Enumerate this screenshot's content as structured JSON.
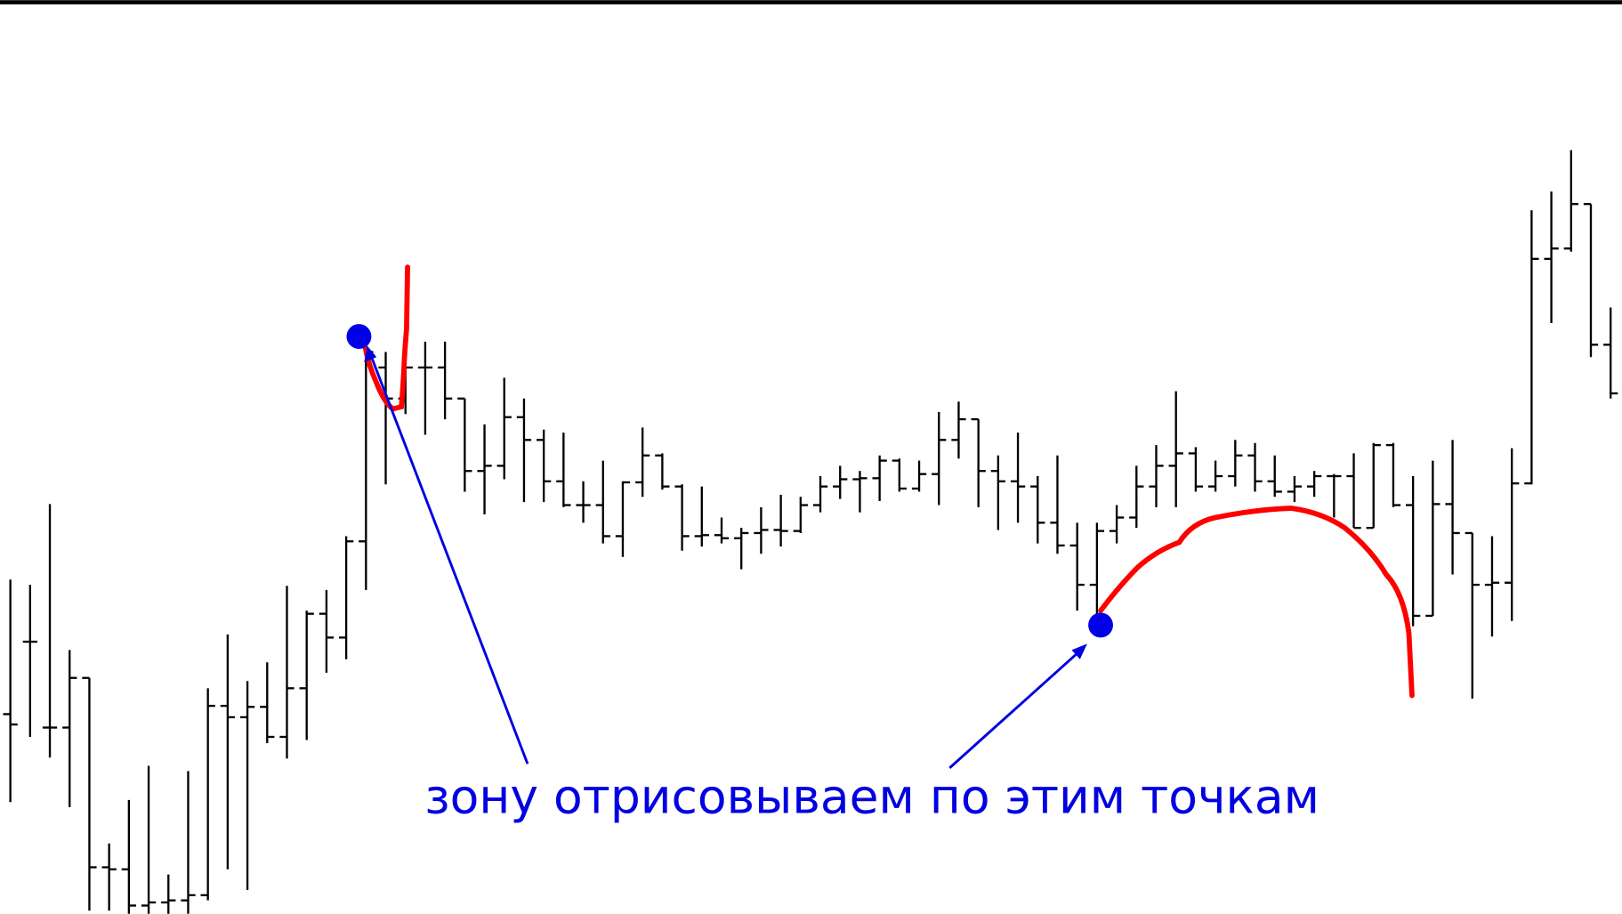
{
  "chart_data": {
    "type": "ohlc",
    "annotation": "зону отрисовываем по этим точкам",
    "ylim": [
      0,
      883
    ],
    "high": [
      323,
      318,
      396,
      255,
      228,
      68,
      110,
      143,
      38,
      138,
      218,
      270,
      225,
      243,
      317,
      293,
      313,
      365,
      558,
      543,
      543,
      553,
      553,
      498,
      473,
      518,
      498,
      468,
      465,
      418,
      438,
      418,
      470,
      445,
      415,
      413,
      383,
      373,
      393,
      405,
      403,
      423,
      433,
      428,
      443,
      440,
      438,
      485,
      495,
      478,
      443,
      465,
      423,
      443,
      378,
      378,
      395,
      433,
      453,
      505,
      451,
      438,
      458,
      455,
      443,
      423,
      428,
      425,
      445,
      455,
      455,
      423,
      438,
      458,
      368,
      365,
      450,
      680,
      698,
      738,
      686,
      586
    ],
    "low": [
      108,
      171,
      151,
      103,
      3,
      3,
      0,
      0,
      0,
      0,
      13,
      43,
      23,
      165,
      150,
      168,
      233,
      246,
      313,
      415,
      483,
      463,
      478,
      408,
      386,
      420,
      398,
      398,
      393,
      378,
      358,
      345,
      403,
      410,
      351,
      355,
      358,
      333,
      348,
      355,
      368,
      388,
      401,
      388,
      399,
      408,
      408,
      395,
      440,
      393,
      371,
      378,
      358,
      348,
      293,
      278,
      358,
      373,
      393,
      393,
      408,
      408,
      413,
      408,
      403,
      398,
      403,
      383,
      373,
      373,
      393,
      278,
      288,
      328,
      208,
      268,
      283,
      415,
      571,
      640,
      538,
      498
    ],
    "open": [
      193,
      263,
      180,
      180,
      228,
      45,
      43,
      8,
      11,
      13,
      18,
      201,
      190,
      200,
      171,
      218,
      290,
      267,
      360,
      528,
      498,
      528,
      528,
      498,
      428,
      433,
      480,
      458,
      418,
      395,
      395,
      365,
      417,
      443,
      413,
      365,
      366,
      363,
      368,
      371,
      370,
      395,
      413,
      420,
      421,
      438,
      411,
      425,
      458,
      478,
      428,
      418,
      413,
      378,
      356,
      318,
      370,
      383,
      413,
      433,
      445,
      413,
      423,
      443,
      418,
      408,
      413,
      423,
      423,
      373,
      453,
      395,
      288,
      396,
      368,
      318,
      320,
      416,
      633,
      643,
      686,
      550
    ],
    "close": [
      183,
      263,
      180,
      228,
      45,
      43,
      8,
      11,
      13,
      18,
      201,
      190,
      200,
      171,
      218,
      290,
      267,
      360,
      543,
      498,
      528,
      528,
      498,
      428,
      433,
      480,
      458,
      418,
      395,
      395,
      365,
      417,
      443,
      413,
      365,
      366,
      363,
      368,
      371,
      370,
      395,
      413,
      420,
      421,
      438,
      411,
      425,
      458,
      478,
      428,
      418,
      413,
      378,
      356,
      318,
      370,
      383,
      413,
      433,
      445,
      413,
      423,
      443,
      418,
      408,
      413,
      423,
      423,
      373,
      453,
      395,
      288,
      396,
      368,
      318,
      320,
      416,
      633,
      643,
      686,
      550,
      503
    ]
  }
}
